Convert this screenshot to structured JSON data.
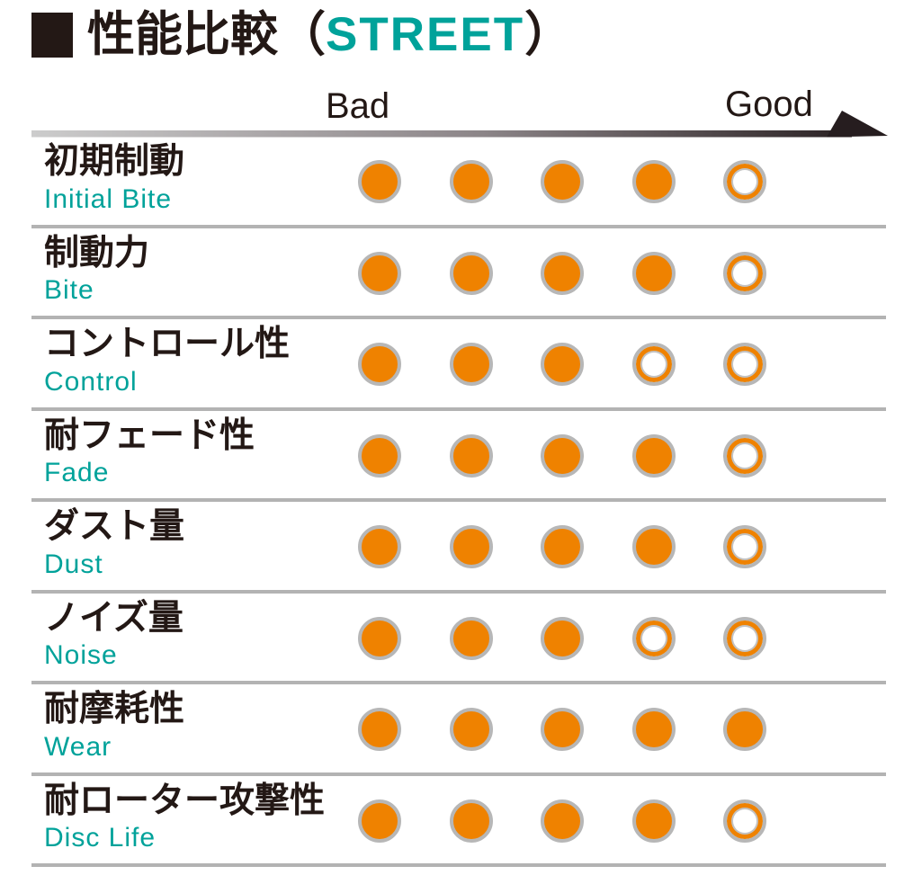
{
  "page": {
    "title": {
      "marker": "■",
      "prefix": "性能比較（",
      "brand": "STREET",
      "suffix": "）"
    },
    "scale_labels": {
      "bad": "Bad",
      "good": "Good"
    }
  },
  "colors": {
    "accent_teal": "#00A29A",
    "dot_orange": "#EF8200",
    "dot_border_gray": "#B7B7B7",
    "divider_gray": "#B3B3B3",
    "text_black": "#231815"
  },
  "chart_data": {
    "type": "table",
    "title": "性能比較（STREET）",
    "scale": {
      "min_label": "Bad",
      "max_label": "Good",
      "max_points": 5
    },
    "rows": [
      {
        "label_ja": "初期制動",
        "label_en": "Initial Bite",
        "value": 4
      },
      {
        "label_ja": "制動力",
        "label_en": "Bite",
        "value": 4
      },
      {
        "label_ja": "コントロール性",
        "label_en": "Control",
        "value": 3
      },
      {
        "label_ja": "耐フェード性",
        "label_en": "Fade",
        "value": 4
      },
      {
        "label_ja": "ダスト量",
        "label_en": "Dust",
        "value": 4
      },
      {
        "label_ja": "ノイズ量",
        "label_en": "Noise",
        "value": 3
      },
      {
        "label_ja": "耐摩耗性",
        "label_en": "Wear",
        "value": 5
      },
      {
        "label_ja": "耐ローター攻撃性",
        "label_en": "Disc Life",
        "value": 4
      }
    ]
  }
}
